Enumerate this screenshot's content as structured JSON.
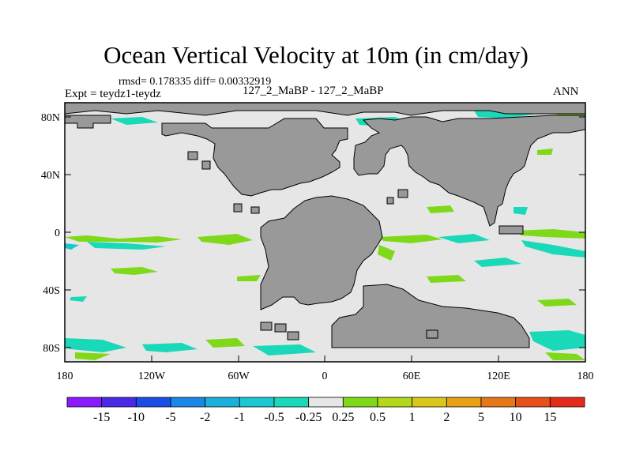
{
  "header": {
    "title": "Ocean Vertical Velocity at 10m (in cm/day)",
    "stats": "rmsd= 0.178335 diff= 0.00332919",
    "expt_label": "Expt = teydz1-teydz",
    "runs_label": "127_2_MaBP - 127_2_MaBP",
    "season": "ANN"
  },
  "map": {
    "lat_ticks": [
      "80N",
      "40N",
      "0",
      "40S",
      "80S"
    ],
    "lon_ticks": [
      "180",
      "120W",
      "60W",
      "0",
      "60E",
      "120E",
      "180"
    ],
    "colors": {
      "land": "#999999",
      "ocean_near_zero": "#e6e6e6",
      "frame": "#000000"
    }
  },
  "colorbar": {
    "labels": [
      "-15",
      "-10",
      "-5",
      "-2",
      "-1",
      "-0.5",
      "-0.25",
      "0.25",
      "0.5",
      "1",
      "2",
      "5",
      "10",
      "15"
    ],
    "colors": [
      "#8c1aff",
      "#4a2ae6",
      "#1a4ee6",
      "#1a88e6",
      "#1ab0d9",
      "#1ac8d1",
      "#1ad9b8",
      "#e6e6e6",
      "#7fd91a",
      "#b3d91a",
      "#d9c81a",
      "#e6a01a",
      "#e6781a",
      "#e6501a",
      "#e62a1a"
    ]
  }
}
